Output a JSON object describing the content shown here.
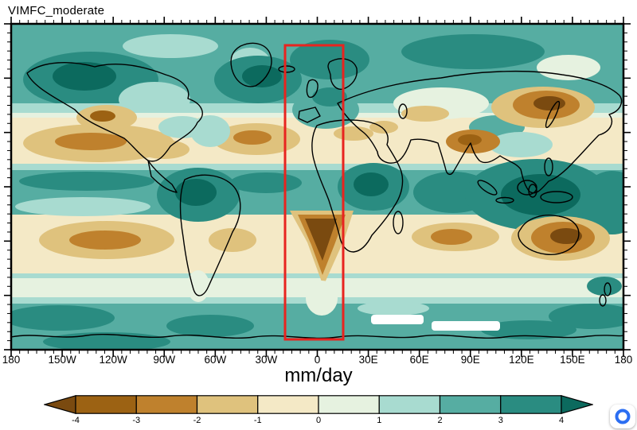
{
  "title": "VIMFC_moderate",
  "axis": {
    "xlabel": "mm/day",
    "lon_labels": [
      "180",
      "150W",
      "120W",
      "90W",
      "60W",
      "30W",
      "0",
      "30E",
      "60E",
      "90E",
      "120E",
      "150E",
      "180"
    ]
  },
  "colorbar": {
    "tick_labels": [
      "-4",
      "-3",
      "-2",
      "-1",
      "0",
      "1",
      "2",
      "3",
      "4"
    ],
    "colors": [
      "#7a4a10",
      "#9c6213",
      "#bf812d",
      "#dfc27d",
      "#f4e9c6",
      "#e6f2e0",
      "#a8dbd0",
      "#56ada2",
      "#2a8c81",
      "#0c6a5e"
    ]
  },
  "highlight_box_color": "#e8241f",
  "badge_color": "#2b6ef2",
  "chart_data": {
    "type": "heatmap",
    "title": "VIMFC_moderate",
    "xlabel": "mm/day",
    "units": "mm/day",
    "x_ticks": [
      "180",
      "150W",
      "120W",
      "90W",
      "60W",
      "30W",
      "0",
      "30E",
      "60E",
      "90E",
      "120E",
      "150E",
      "180"
    ],
    "levels": [
      -4,
      -3,
      -2,
      -1,
      0,
      1,
      2,
      3,
      4
    ],
    "palette": [
      "#7a4a10",
      "#9c6213",
      "#bf812d",
      "#dfc27d",
      "#f4e9c6",
      "#e6f2e0",
      "#a8dbd0",
      "#56ada2",
      "#2a8c81",
      "#0c6a5e"
    ],
    "axis_ranges": {
      "lon": [
        -180,
        180
      ],
      "lat": [
        -90,
        90
      ]
    },
    "grid": "off",
    "legend_position": "bottom",
    "highlight_region": {
      "lon_min": -20,
      "lon_max": 15,
      "lat_min": -84,
      "lat_max": 78,
      "color": "#e8241f"
    },
    "description": "Filled-contour global map of vertically integrated moisture flux convergence (moderate case), mm/day. Teal/green shading marks positive values (convergence: ITCZ, warm pool, storm tracks); brown shading marks negative values (divergence: subtropical oceans, East Asia, Australia, SE Pacific, South Atlantic wedge). A red box outlines the ~20W-15E longitude sector; small white patches near Antarctica are missing data."
  }
}
